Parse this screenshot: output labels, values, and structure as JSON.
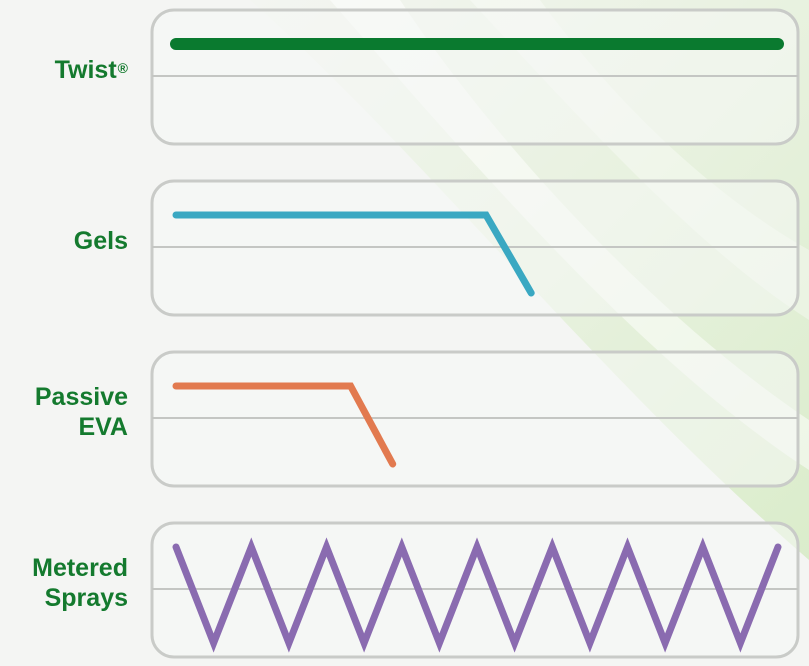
{
  "chart_data": {
    "type": "line",
    "title": "",
    "xlabel": "",
    "ylabel": "",
    "grid": false,
    "legend": "none",
    "series": [
      {
        "name": "Twist®",
        "label_main": "Twist",
        "label_sup": "®",
        "label_lines": [
          "Twist"
        ],
        "color": "#0a7a2f",
        "points": [
          [
            0,
            1
          ],
          [
            1,
            1
          ]
        ]
      },
      {
        "name": "Gels",
        "label_lines": [
          "Gels"
        ],
        "color": "#3aa8c2",
        "points": [
          [
            0,
            1
          ],
          [
            0.515,
            1
          ],
          [
            0.59,
            0
          ]
        ]
      },
      {
        "name": "Passive EVA",
        "label_lines": [
          "Passive",
          "EVA"
        ],
        "color": "#e27a4f",
        "points": [
          [
            0,
            1
          ],
          [
            0.29,
            1
          ],
          [
            0.36,
            0
          ]
        ]
      },
      {
        "name": "Metered Sprays",
        "label_lines": [
          "Metered",
          "Sprays"
        ],
        "color": "#8a6bb0",
        "pattern": "zigzag",
        "peaks": 8,
        "points": [
          [
            0,
            1
          ],
          [
            0.0625,
            0
          ],
          [
            0.125,
            1
          ],
          [
            0.1875,
            0
          ],
          [
            0.25,
            1
          ],
          [
            0.3125,
            0
          ],
          [
            0.375,
            1
          ],
          [
            0.4375,
            0
          ],
          [
            0.5,
            1
          ],
          [
            0.5625,
            0
          ],
          [
            0.625,
            1
          ],
          [
            0.6875,
            0
          ],
          [
            0.75,
            1
          ],
          [
            0.8125,
            0
          ],
          [
            0.875,
            1
          ],
          [
            0.9375,
            0
          ],
          [
            1,
            1
          ]
        ]
      }
    ]
  },
  "colors": {
    "label_text": "#147a2e",
    "panel_border": "#c9cbc8",
    "panel_fill": "#f6f7f5",
    "baseline": "#c4c6c3"
  }
}
